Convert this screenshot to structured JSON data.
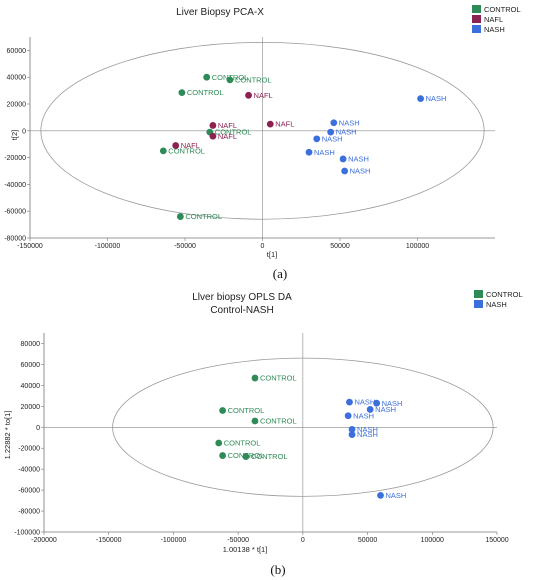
{
  "colors": {
    "CONTROL": "#2e8b57",
    "NAFL": "#8b2252",
    "NASH": "#3b6fdc"
  },
  "chart_data": [
    {
      "type": "scatter",
      "title": "Liver Biopsy PCA-X",
      "subtitle": "",
      "xlabel": "t[1]",
      "ylabel": "t[2]",
      "xlim": [
        -150000,
        150000
      ],
      "ylim": [
        -80000,
        70000
      ],
      "xticks": [
        -150000,
        -100000,
        -50000,
        0,
        50000,
        100000
      ],
      "yticks": [
        -80000,
        -60000,
        -40000,
        -20000,
        0,
        20000,
        40000,
        60000
      ],
      "ellipse": {
        "cx": 0,
        "cy": 0,
        "rx": 143000,
        "ry": 66000
      },
      "legend": [
        "CONTROL",
        "NAFL",
        "NASH"
      ],
      "legend_position": "top-right",
      "panel_label": "(a)",
      "points": [
        {
          "label": "CONTROL",
          "x": -36000,
          "y": 40000
        },
        {
          "label": "CONTROL",
          "x": -21000,
          "y": 38000
        },
        {
          "label": "CONTROL",
          "x": -52000,
          "y": 28500
        },
        {
          "label": "CONTROL",
          "x": -34000,
          "y": -1000
        },
        {
          "label": "CONTROL",
          "x": -64000,
          "y": -15000
        },
        {
          "label": "CONTROL",
          "x": -53000,
          "y": -64000
        },
        {
          "label": "NAFL",
          "x": -9000,
          "y": 26500
        },
        {
          "label": "NAFL",
          "x": -32000,
          "y": 4000
        },
        {
          "label": "NAFL",
          "x": 5000,
          "y": 5000
        },
        {
          "label": "NAFL",
          "x": -32000,
          "y": -4000
        },
        {
          "label": "NAFL",
          "x": -56000,
          "y": -11000
        },
        {
          "label": "NASH",
          "x": 102000,
          "y": 24000
        },
        {
          "label": "NASH",
          "x": 46000,
          "y": 6000
        },
        {
          "label": "NASH",
          "x": 44000,
          "y": -1000
        },
        {
          "label": "NASH",
          "x": 35000,
          "y": -6000
        },
        {
          "label": "NASH",
          "x": 30000,
          "y": -16000
        },
        {
          "label": "NASH",
          "x": 52000,
          "y": -21000
        },
        {
          "label": "NASH",
          "x": 53000,
          "y": -30000
        }
      ]
    },
    {
      "type": "scatter",
      "title": "Llver biopsy OPLS DA",
      "subtitle": "Control-NASH",
      "xlabel": "1.00138 * t[1]",
      "ylabel": "1.22882 * to[1]",
      "xlim": [
        -200000,
        150000
      ],
      "ylim": [
        -100000,
        90000
      ],
      "xticks": [
        -200000,
        -150000,
        -100000,
        -50000,
        0,
        50000,
        100000,
        150000
      ],
      "yticks": [
        -100000,
        -80000,
        -60000,
        -40000,
        -20000,
        0,
        20000,
        40000,
        60000,
        80000
      ],
      "ellipse": {
        "cx": 0,
        "cy": 0,
        "rx": 147000,
        "ry": 66000
      },
      "legend": [
        "CONTROL",
        "NASH"
      ],
      "legend_position": "top-right",
      "panel_label": "(b)",
      "points": [
        {
          "label": "CONTROL",
          "x": -37000,
          "y": 47000
        },
        {
          "label": "CONTROL",
          "x": -62000,
          "y": 16000
        },
        {
          "label": "CONTROL",
          "x": -37000,
          "y": 6000
        },
        {
          "label": "CONTROL",
          "x": -65000,
          "y": -15000
        },
        {
          "label": "CONTROL",
          "x": -62000,
          "y": -27000
        },
        {
          "label": "CONTROL",
          "x": -44000,
          "y": -28000
        },
        {
          "label": "NASH",
          "x": 36000,
          "y": 24000
        },
        {
          "label": "NASH",
          "x": 57000,
          "y": 23000
        },
        {
          "label": "NASH",
          "x": 52000,
          "y": 17000
        },
        {
          "label": "NASH",
          "x": 35000,
          "y": 11000
        },
        {
          "label": "NASH",
          "x": 38000,
          "y": -2000
        },
        {
          "label": "NASH",
          "x": 38000,
          "y": -7000
        },
        {
          "label": "NASH",
          "x": 60000,
          "y": -65000
        }
      ]
    }
  ]
}
